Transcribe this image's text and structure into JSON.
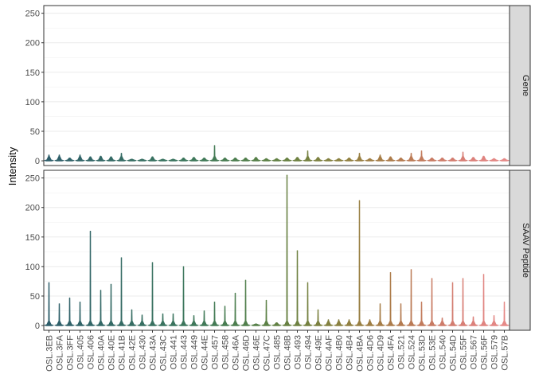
{
  "chart_data": {
    "type": "violin",
    "ylabel": "Intensity",
    "ylim": [
      -8,
      263
    ],
    "yticks": [
      0,
      50,
      100,
      150,
      200,
      250
    ],
    "grid": true,
    "facet_labels": [
      "Gene",
      "SAAV Peptide"
    ],
    "categories": [
      "OSL.3EB",
      "OSL.3FA",
      "OSL.3FF",
      "OSL.405",
      "OSL.406",
      "OSL.40A",
      "OSL.40E",
      "OSL.41B",
      "OSL.42E",
      "OSL.430",
      "OSL.43A",
      "OSL.43C",
      "OSL.441",
      "OSL.443",
      "OSL.449",
      "OSL.44E",
      "OSL.457",
      "OSL.458",
      "OSL.46A",
      "OSL.46D",
      "OSL.46E",
      "OSL.47C",
      "OSL.485",
      "OSL.48B",
      "OSL.493",
      "OSL.494",
      "OSL.49E",
      "OSL.4AF",
      "OSL.4B0",
      "OSL.4B4",
      "OSL.4BA",
      "OSL.4D6",
      "OSL.4D9",
      "OSL.4FA",
      "OSL.521",
      "OSL.524",
      "OSL.53D",
      "OSL.53E",
      "OSL.540",
      "OSL.54D",
      "OSL.55F",
      "OSL.567",
      "OSL.56F",
      "OSL.579",
      "OSL.57B"
    ],
    "colors": [
      "#2e5e6b",
      "#2f606a",
      "#306269",
      "#316468",
      "#326667",
      "#336866",
      "#346a65",
      "#356b64",
      "#366d63",
      "#376f62",
      "#387160",
      "#39735f",
      "#3a745e",
      "#3c765c",
      "#3e785a",
      "#417a58",
      "#447b55",
      "#487d52",
      "#4c7e4f",
      "#517f4c",
      "#568049",
      "#5c8146",
      "#628144",
      "#688142",
      "#6e8141",
      "#758140",
      "#7c8140",
      "#838140",
      "#8a8140",
      "#918041",
      "#987f42",
      "#9f7e44",
      "#a67d47",
      "#ad7c4b",
      "#b47b50",
      "#bb7b56",
      "#c27b5c",
      "#c87b63",
      "#ce7c6a",
      "#d37d70",
      "#d87f76",
      "#dc817b",
      "#e08480",
      "#e38784",
      "#e68a88"
    ],
    "series": [
      {
        "name": "Gene",
        "max": [
          10,
          10,
          5,
          10,
          7,
          8,
          7,
          13,
          3,
          3,
          7,
          3,
          3,
          5,
          6,
          5,
          26,
          5,
          5,
          5,
          6,
          4,
          4,
          5,
          6,
          17,
          6,
          4,
          4,
          5,
          13,
          4,
          10,
          7,
          5,
          13,
          17,
          5,
          5,
          5,
          15,
          6,
          8,
          4,
          4
        ]
      },
      {
        "name": "SAAV Peptide",
        "max": [
          73,
          37,
          47,
          40,
          160,
          60,
          70,
          115,
          27,
          18,
          107,
          20,
          20,
          100,
          17,
          25,
          40,
          33,
          55,
          77,
          3,
          43,
          5,
          255,
          127,
          73,
          27,
          10,
          10,
          10,
          212,
          10,
          37,
          90,
          37,
          95,
          40,
          80,
          13,
          73,
          80,
          15,
          87,
          17,
          40
        ]
      }
    ]
  }
}
